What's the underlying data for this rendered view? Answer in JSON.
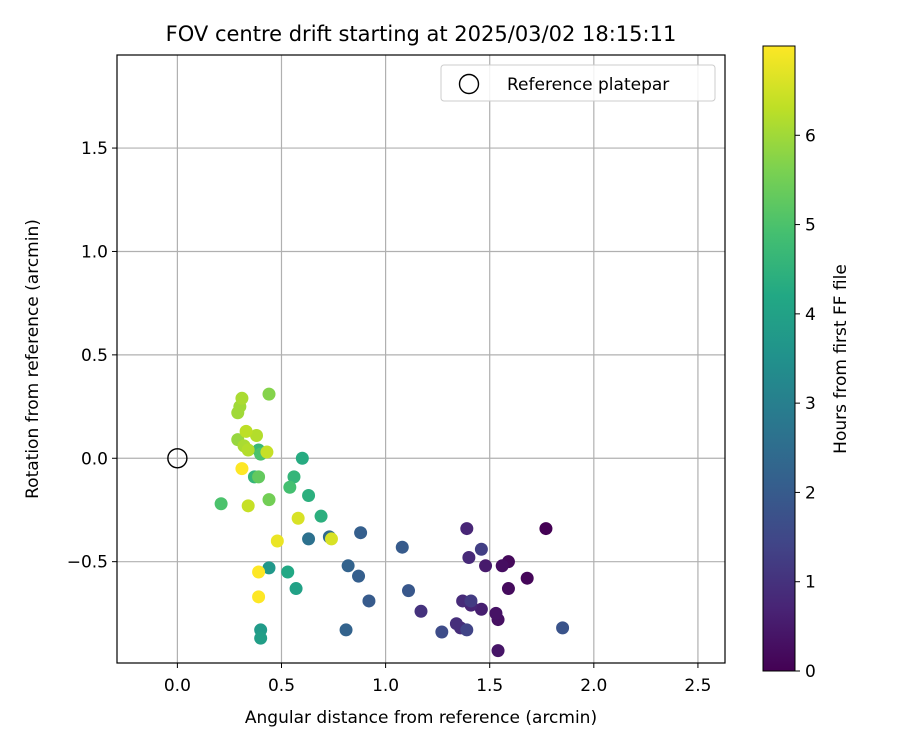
{
  "chart_data": {
    "type": "scatter",
    "title": "FOV centre drift starting at 2025/03/02 18:15:11",
    "xlabel": "Angular distance from reference (arcmin)",
    "ylabel": "Rotation from reference (arcmin)",
    "xlim": [
      -0.29,
      2.63
    ],
    "ylim": [
      -0.99,
      1.95
    ],
    "xticks": [
      0.0,
      0.5,
      1.0,
      1.5,
      2.0,
      2.5
    ],
    "xtick_labels": [
      "0.0",
      "0.5",
      "1.0",
      "1.5",
      "2.0",
      "2.5"
    ],
    "yticks": [
      -0.5,
      0.0,
      0.5,
      1.0,
      1.5
    ],
    "ytick_labels": [
      "−0.5",
      "0.0",
      "0.5",
      "1.0",
      "1.5"
    ],
    "grid": true,
    "legend": {
      "placement": "top-right",
      "entries": [
        "Reference platepar"
      ]
    },
    "reference_point": {
      "x": 0.0,
      "y": 0.0,
      "marker": "open-circle"
    },
    "colorbar": {
      "label": "Hours from first FF file",
      "colormap": "viridis",
      "range": [
        0,
        7
      ],
      "ticks": [
        0,
        1,
        2,
        3,
        4,
        5,
        6
      ],
      "tick_labels": [
        "0",
        "1",
        "2",
        "3",
        "4",
        "5",
        "6"
      ]
    },
    "points": [
      {
        "x": 1.77,
        "y": -0.34,
        "h": 0.0
      },
      {
        "x": 1.68,
        "y": -0.58,
        "h": 0.1
      },
      {
        "x": 1.59,
        "y": -0.5,
        "h": 0.15
      },
      {
        "x": 1.59,
        "y": -0.63,
        "h": 0.2
      },
      {
        "x": 1.56,
        "y": -0.52,
        "h": 0.25
      },
      {
        "x": 1.54,
        "y": -0.78,
        "h": 0.3
      },
      {
        "x": 1.53,
        "y": -0.75,
        "h": 0.35
      },
      {
        "x": 1.54,
        "y": -0.93,
        "h": 0.4
      },
      {
        "x": 1.48,
        "y": -0.52,
        "h": 0.5
      },
      {
        "x": 1.46,
        "y": -0.73,
        "h": 0.6
      },
      {
        "x": 1.41,
        "y": -0.71,
        "h": 0.7
      },
      {
        "x": 1.39,
        "y": -0.34,
        "h": 0.75
      },
      {
        "x": 1.4,
        "y": -0.48,
        "h": 0.8
      },
      {
        "x": 1.37,
        "y": -0.69,
        "h": 0.85
      },
      {
        "x": 1.36,
        "y": -0.82,
        "h": 0.9
      },
      {
        "x": 1.34,
        "y": -0.8,
        "h": 0.95
      },
      {
        "x": 1.17,
        "y": -0.74,
        "h": 1.0
      },
      {
        "x": 1.41,
        "y": -0.69,
        "h": 1.2
      },
      {
        "x": 1.46,
        "y": -0.44,
        "h": 1.3
      },
      {
        "x": 1.39,
        "y": -0.83,
        "h": 1.4
      },
      {
        "x": 1.27,
        "y": -0.84,
        "h": 1.6
      },
      {
        "x": 1.85,
        "y": -0.82,
        "h": 1.8
      },
      {
        "x": 1.11,
        "y": -0.64,
        "h": 1.9
      },
      {
        "x": 1.08,
        "y": -0.43,
        "h": 2.0
      },
      {
        "x": 0.92,
        "y": -0.69,
        "h": 2.0
      },
      {
        "x": 0.88,
        "y": -0.36,
        "h": 2.1
      },
      {
        "x": 0.87,
        "y": -0.57,
        "h": 2.1
      },
      {
        "x": 0.82,
        "y": -0.52,
        "h": 2.2
      },
      {
        "x": 0.81,
        "y": -0.83,
        "h": 2.2
      },
      {
        "x": 0.73,
        "y": -0.38,
        "h": 2.4
      },
      {
        "x": 0.63,
        "y": -0.39,
        "h": 2.6
      },
      {
        "x": 0.44,
        "y": -0.53,
        "h": 3.7
      },
      {
        "x": 0.4,
        "y": -0.83,
        "h": 3.8
      },
      {
        "x": 0.4,
        "y": -0.87,
        "h": 3.9
      },
      {
        "x": 0.57,
        "y": -0.63,
        "h": 4.0
      },
      {
        "x": 0.53,
        "y": -0.55,
        "h": 4.2
      },
      {
        "x": 0.6,
        "y": 0.0,
        "h": 4.3
      },
      {
        "x": 0.69,
        "y": -0.28,
        "h": 4.4
      },
      {
        "x": 0.63,
        "y": -0.18,
        "h": 4.4
      },
      {
        "x": 0.56,
        "y": -0.09,
        "h": 4.6
      },
      {
        "x": 0.37,
        "y": -0.09,
        "h": 4.6
      },
      {
        "x": 0.39,
        "y": 0.04,
        "h": 4.7
      },
      {
        "x": 0.54,
        "y": -0.14,
        "h": 4.9
      },
      {
        "x": 0.4,
        "y": 0.02,
        "h": 5.0
      },
      {
        "x": 0.21,
        "y": -0.22,
        "h": 5.0
      },
      {
        "x": 0.39,
        "y": -0.09,
        "h": 5.3
      },
      {
        "x": 0.44,
        "y": -0.2,
        "h": 5.5
      },
      {
        "x": 0.44,
        "y": 0.31,
        "h": 5.7
      },
      {
        "x": 0.29,
        "y": 0.09,
        "h": 5.9
      },
      {
        "x": 0.3,
        "y": 0.25,
        "h": 6.0
      },
      {
        "x": 0.29,
        "y": 0.22,
        "h": 6.0
      },
      {
        "x": 0.31,
        "y": 0.29,
        "h": 6.1
      },
      {
        "x": 0.32,
        "y": 0.06,
        "h": 6.1
      },
      {
        "x": 0.34,
        "y": 0.04,
        "h": 6.2
      },
      {
        "x": 0.38,
        "y": 0.11,
        "h": 6.2
      },
      {
        "x": 0.33,
        "y": 0.13,
        "h": 6.3
      },
      {
        "x": 0.43,
        "y": 0.03,
        "h": 6.4
      },
      {
        "x": 0.34,
        "y": -0.23,
        "h": 6.4
      },
      {
        "x": 0.58,
        "y": -0.29,
        "h": 6.6
      },
      {
        "x": 0.74,
        "y": -0.39,
        "h": 6.6
      },
      {
        "x": 0.48,
        "y": -0.4,
        "h": 6.8
      },
      {
        "x": 0.31,
        "y": -0.05,
        "h": 7.0
      },
      {
        "x": 0.39,
        "y": -0.55,
        "h": 7.0
      },
      {
        "x": 0.39,
        "y": -0.67,
        "h": 7.0
      }
    ]
  }
}
